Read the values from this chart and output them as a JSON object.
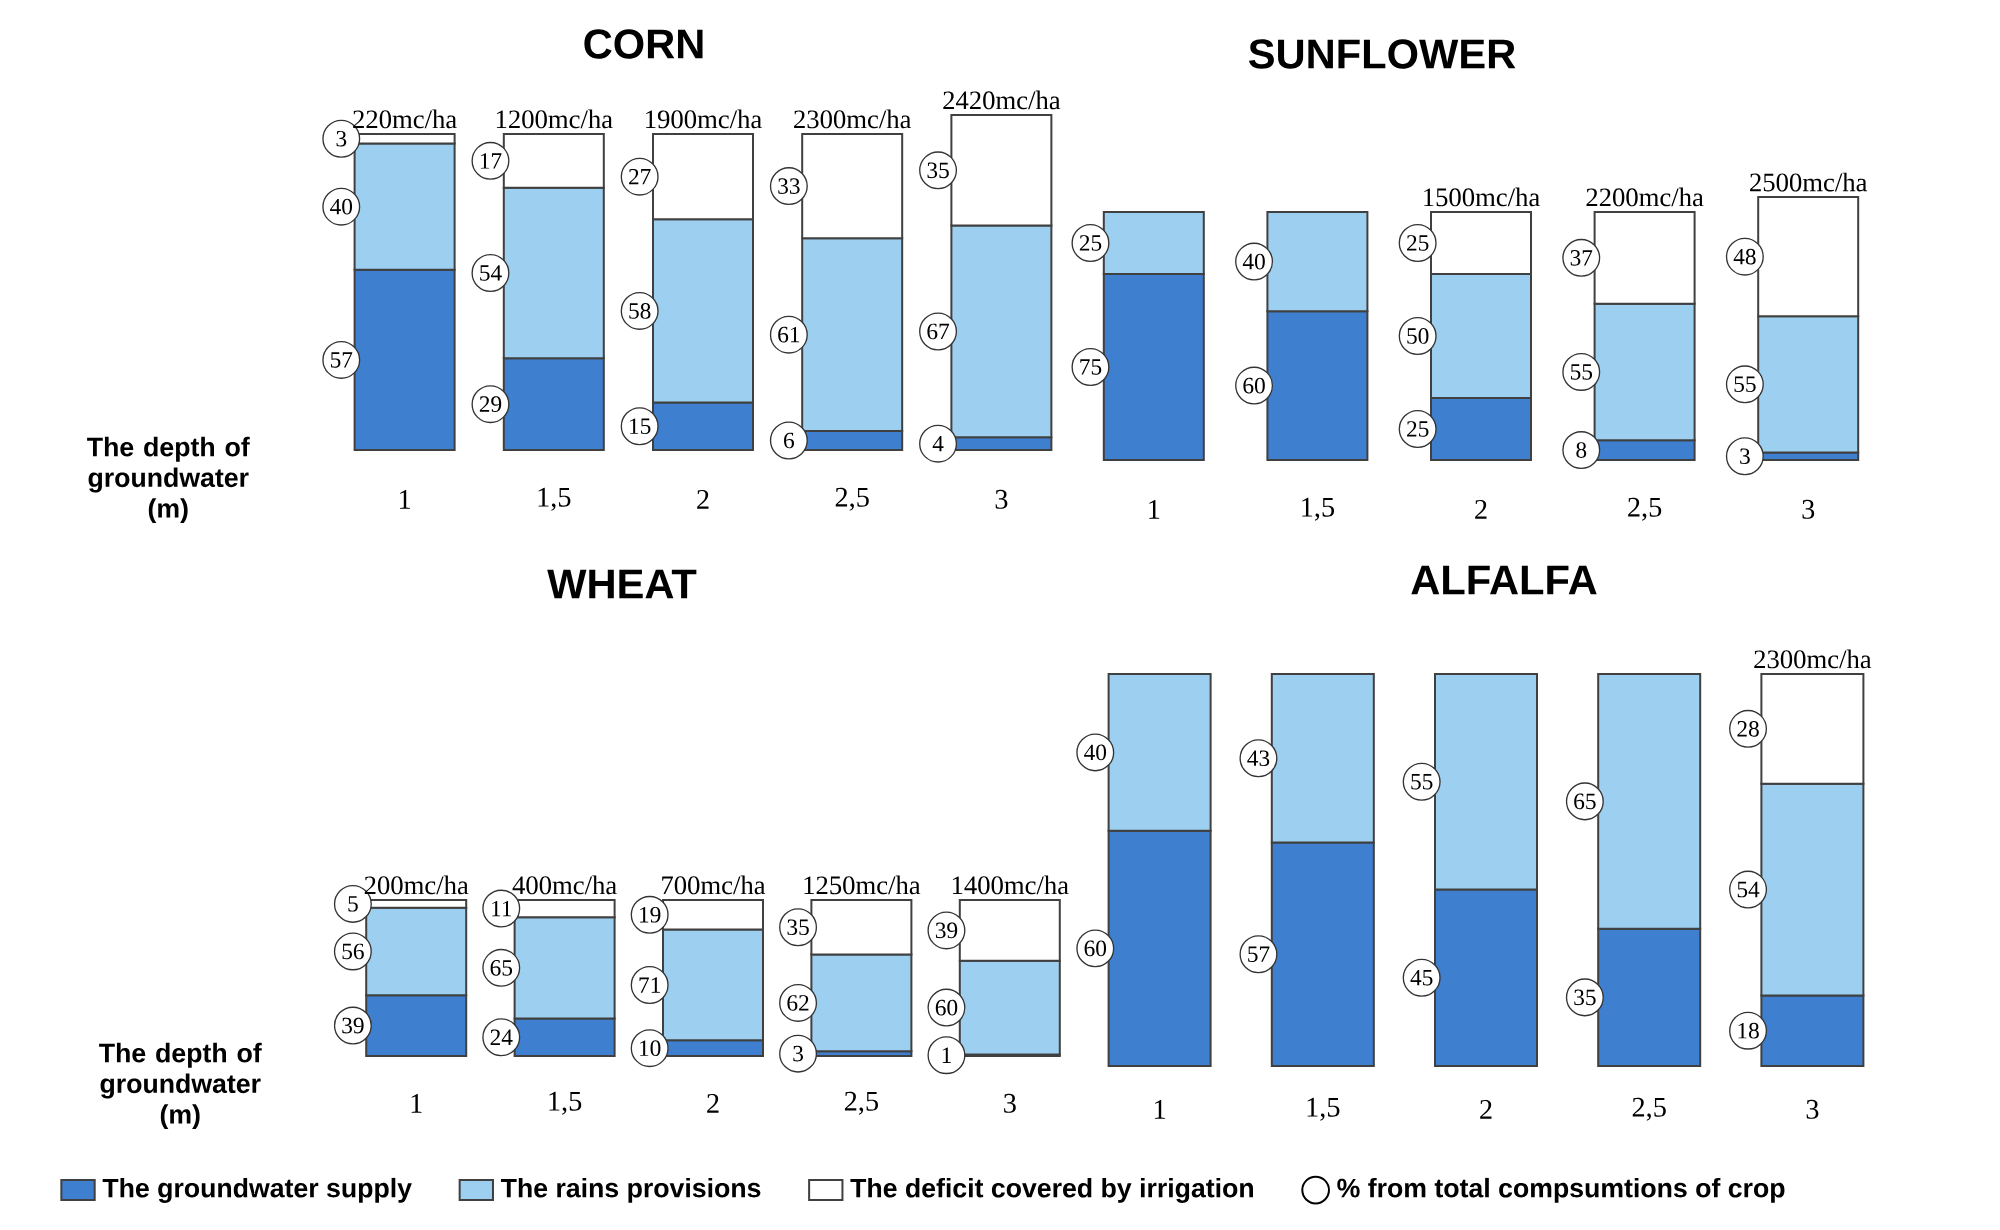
{
  "chart_data": [
    {
      "type": "bar",
      "stacked": true,
      "data_labels": true,
      "title": "CORN",
      "xlabel": "The depth of groundwater (m)",
      "categories": [
        "1",
        "1,5",
        "2",
        "2,5",
        "3"
      ],
      "series": [
        {
          "color": "#3f7fcf",
          "values": [
            57,
            29,
            15,
            6,
            4
          ]
        },
        {
          "color": "#9dd0f0",
          "values": [
            40,
            54,
            58,
            61,
            67
          ]
        },
        {
          "color": "#ffffff",
          "values": [
            3,
            17,
            27,
            33,
            35
          ]
        }
      ],
      "annotations": [
        {
          "text": "220mc/ha",
          "x": "1",
          "y": 100
        },
        {
          "text": "1200mc/ha",
          "x": "1,5",
          "y": 100
        },
        {
          "text": "1900mc/ha",
          "x": "2",
          "y": 100
        },
        {
          "text": "2300mc/ha",
          "x": "2,5",
          "y": 100
        },
        {
          "text": "2420mc/ha",
          "x": "3",
          "y": 106
        }
      ]
    },
    {
      "type": "bar",
      "stacked": true,
      "data_labels": true,
      "title": "SUNFLOWER",
      "categories": [
        "1",
        "1,5",
        "2",
        "2,5",
        "3"
      ],
      "series": [
        {
          "color": "#3f7fcf",
          "values": [
            75,
            60,
            25,
            8,
            3
          ]
        },
        {
          "color": "#9dd0f0",
          "values": [
            25,
            40,
            50,
            55,
            55
          ]
        },
        {
          "color": "#ffffff",
          "values": [
            null,
            null,
            25,
            37,
            48
          ]
        }
      ],
      "annotations": [
        {
          "text": "1500mc/ha",
          "x": "2",
          "y": 100
        },
        {
          "text": "2200mc/ha",
          "x": "2,5",
          "y": 100
        },
        {
          "text": "2500mc/ha",
          "x": "3",
          "y": 106
        }
      ]
    },
    {
      "type": "bar",
      "stacked": true,
      "data_labels": true,
      "title": "WHEAT",
      "xlabel": "The depth of groundwater (m)",
      "legend": "bottom",
      "categories": [
        "1",
        "1,5",
        "2",
        "2,5",
        "3"
      ],
      "series": [
        {
          "name": "The groundwater supply",
          "color": "#3f7fcf",
          "values": [
            39,
            24,
            10,
            3,
            1
          ]
        },
        {
          "name": "The rains provisions",
          "color": "#9dd0f0",
          "values": [
            56,
            65,
            71,
            62,
            60
          ]
        },
        {
          "name": "The deficit covered by irrigation",
          "color": "#ffffff",
          "values": [
            5,
            11,
            19,
            35,
            39
          ]
        }
      ],
      "annotations": [
        {
          "text": "200mc/ha",
          "x": "1",
          "y": 100
        },
        {
          "text": "400mc/ha",
          "x": "1,5",
          "y": 100
        },
        {
          "text": "700mc/ha",
          "x": "2",
          "y": 100
        },
        {
          "text": "1250mc/ha",
          "x": "2,5",
          "y": 100
        },
        {
          "text": "1400mc/ha",
          "x": "3",
          "y": 100
        },
        "% from total compsumtions of crop"
      ]
    },
    {
      "type": "bar",
      "stacked": true,
      "data_labels": true,
      "title": "ALFALFA",
      "categories": [
        "1",
        "1,5",
        "2",
        "2,5",
        "3"
      ],
      "series": [
        {
          "color": "#3f7fcf",
          "values": [
            60,
            57,
            45,
            35,
            18
          ]
        },
        {
          "color": "#9dd0f0",
          "values": [
            40,
            43,
            55,
            65,
            54
          ]
        },
        {
          "color": "#ffffff",
          "values": [
            null,
            null,
            null,
            null,
            28
          ]
        }
      ],
      "annotations": [
        {
          "text": "2300mc/ha",
          "x": "3",
          "y": 100
        }
      ]
    }
  ]
}
